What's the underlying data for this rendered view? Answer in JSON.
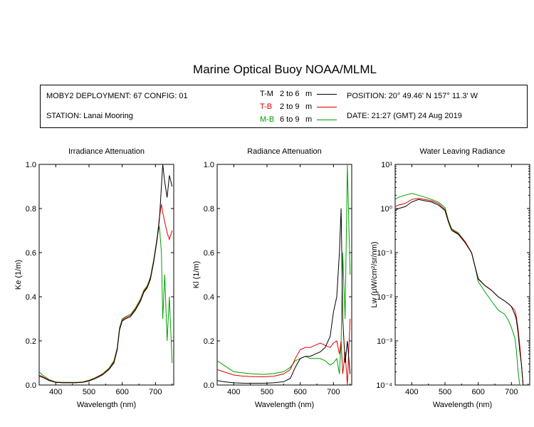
{
  "title": "Marine Optical Buoy NOAA/MLML",
  "info": {
    "deployment": "MOBY2 DEPLOYMENT: 67 CONFIG: 01",
    "station": "STATION: Lanai Mooring",
    "position": "POSITION: 20° 49.46' N   157° 11.3' W",
    "date": "DATE: 21:27 (GMT) 24 Aug 2019",
    "legend": [
      {
        "code": "T-M",
        "range": "2 to 6",
        "unit": "m",
        "color": "#000000"
      },
      {
        "code": "T-B",
        "range": "2 to 9",
        "unit": "m",
        "color": "#e00000"
      },
      {
        "code": "M-B",
        "range": "6 to 9",
        "unit": "m",
        "color": "#00a000"
      }
    ]
  },
  "chart_data": [
    {
      "type": "line",
      "title": "Irradiance Attenuation",
      "xlabel": "Wavelength (nm)",
      "ylabel": "Ke  (1/m)",
      "xlim": [
        350,
        755
      ],
      "ylim": [
        0,
        1
      ],
      "xticks": [
        400,
        500,
        600,
        700
      ],
      "yticks": [
        0,
        0.2,
        0.4,
        0.6,
        0.8,
        1
      ],
      "yticklabels": [
        "0.0",
        "0.2",
        "0.4",
        "0.6",
        "0.8",
        "1.0"
      ],
      "series": [
        {
          "name": "T-M",
          "color": "#000000",
          "x": [
            350,
            360,
            380,
            400,
            420,
            440,
            460,
            480,
            500,
            520,
            540,
            560,
            575,
            585,
            592,
            600,
            610,
            625,
            640,
            655,
            665,
            675,
            685,
            695,
            705,
            712,
            718,
            722,
            728,
            735,
            742,
            750
          ],
          "y": [
            0.04,
            0.035,
            0.02,
            0.012,
            0.01,
            0.01,
            0.01,
            0.012,
            0.018,
            0.03,
            0.045,
            0.07,
            0.1,
            0.16,
            0.25,
            0.29,
            0.3,
            0.31,
            0.34,
            0.38,
            0.42,
            0.44,
            0.48,
            0.56,
            0.66,
            0.75,
            0.9,
            1.0,
            0.92,
            0.85,
            0.95,
            0.9
          ]
        },
        {
          "name": "T-B",
          "color": "#e00000",
          "x": [
            350,
            360,
            380,
            400,
            420,
            440,
            460,
            480,
            500,
            520,
            540,
            560,
            575,
            585,
            592,
            600,
            610,
            625,
            640,
            655,
            665,
            675,
            685,
            695,
            705,
            712,
            718,
            722,
            728,
            735,
            742,
            750
          ],
          "y": [
            0.045,
            0.038,
            0.022,
            0.013,
            0.011,
            0.011,
            0.011,
            0.013,
            0.02,
            0.032,
            0.048,
            0.073,
            0.105,
            0.165,
            0.255,
            0.295,
            0.305,
            0.315,
            0.345,
            0.385,
            0.425,
            0.445,
            0.485,
            0.565,
            0.665,
            0.76,
            0.82,
            0.78,
            0.74,
            0.69,
            0.66,
            0.7
          ]
        },
        {
          "name": "M-B",
          "color": "#00a000",
          "x": [
            350,
            360,
            380,
            400,
            420,
            440,
            460,
            480,
            500,
            520,
            540,
            560,
            575,
            585,
            592,
            600,
            610,
            625,
            640,
            655,
            665,
            675,
            685,
            695,
            705,
            712,
            718,
            722,
            728,
            735,
            742,
            750
          ],
          "y": [
            0.06,
            0.045,
            0.025,
            0.014,
            0.012,
            0.012,
            0.012,
            0.014,
            0.022,
            0.034,
            0.05,
            0.076,
            0.11,
            0.17,
            0.26,
            0.3,
            0.31,
            0.32,
            0.35,
            0.39,
            0.43,
            0.45,
            0.49,
            0.57,
            0.67,
            0.72,
            0.6,
            0.3,
            0.5,
            0.2,
            0.4,
            0.1
          ]
        }
      ]
    },
    {
      "type": "line",
      "title": "Radiance Attenuation",
      "xlabel": "Wavelength (nm)",
      "ylabel": "Kl  (1/m)",
      "xlim": [
        350,
        755
      ],
      "ylim": [
        0,
        1
      ],
      "xticks": [
        400,
        500,
        600,
        700
      ],
      "yticks": [
        0,
        0.2,
        0.4,
        0.6,
        0.8,
        1
      ],
      "yticklabels": [
        "0.0",
        "0.2",
        "0.4",
        "0.6",
        "0.8",
        "1.0"
      ],
      "series": [
        {
          "name": "T-M",
          "color": "#000000",
          "x": [
            350,
            370,
            400,
            430,
            460,
            490,
            520,
            550,
            570,
            585,
            600,
            615,
            630,
            645,
            660,
            675,
            690,
            700,
            710,
            718,
            723,
            728,
            735,
            742,
            750
          ],
          "y": [
            0.02,
            0.015,
            0.01,
            0.008,
            0.008,
            0.008,
            0.01,
            0.015,
            0.03,
            0.08,
            0.12,
            0.13,
            0.13,
            0.14,
            0.15,
            0.17,
            0.22,
            0.33,
            0.4,
            0.6,
            0.8,
            0.3,
            0.1,
            0.2,
            0.05
          ]
        },
        {
          "name": "T-B",
          "color": "#e00000",
          "x": [
            350,
            370,
            400,
            430,
            460,
            490,
            520,
            550,
            570,
            585,
            600,
            615,
            630,
            645,
            660,
            675,
            690,
            700,
            710,
            718,
            723,
            728,
            735,
            742,
            750
          ],
          "y": [
            0.07,
            0.06,
            0.045,
            0.04,
            0.038,
            0.037,
            0.04,
            0.05,
            0.07,
            0.12,
            0.16,
            0.17,
            0.17,
            0.18,
            0.19,
            0.18,
            0.17,
            0.19,
            0.2,
            0.14,
            0.2,
            0.05,
            0.15,
            0.0,
            0.3
          ]
        },
        {
          "name": "M-B",
          "color": "#00a000",
          "x": [
            350,
            370,
            400,
            430,
            460,
            490,
            520,
            550,
            570,
            585,
            600,
            615,
            630,
            645,
            660,
            675,
            690,
            700,
            710,
            718,
            723,
            728,
            735,
            742,
            750
          ],
          "y": [
            0.11,
            0.09,
            0.06,
            0.055,
            0.05,
            0.048,
            0.052,
            0.06,
            0.08,
            0.11,
            0.12,
            0.13,
            0.12,
            0.12,
            0.12,
            0.11,
            0.09,
            0.1,
            0.12,
            0.05,
            0.2,
            0.6,
            0.3,
            1.0,
            0.5
          ]
        }
      ]
    },
    {
      "type": "line",
      "title": "Water Leaving Radiance",
      "xlabel": "Wavelength (nm)",
      "ylabel": "Lw  (µW/cm²/sr/nm)",
      "scale": "log",
      "xlim": [
        350,
        755
      ],
      "ylim": [
        0.0001,
        10
      ],
      "xticks": [
        400,
        500,
        600,
        700
      ],
      "yticks": [
        0.0001,
        0.001,
        0.01,
        0.1,
        1,
        10
      ],
      "yticklabels": [
        "10⁻⁴",
        "10⁻³",
        "10⁻²",
        "10⁻¹",
        "10⁰",
        "10¹"
      ],
      "series": [
        {
          "name": "T-M",
          "color": "#000000",
          "x": [
            350,
            360,
            380,
            400,
            420,
            440,
            460,
            480,
            500,
            510,
            520,
            540,
            560,
            580,
            590,
            600,
            620,
            640,
            660,
            680,
            690,
            700,
            710,
            715,
            720,
            725,
            730,
            735
          ],
          "y": [
            0.9,
            1.0,
            1.1,
            1.4,
            1.6,
            1.5,
            1.4,
            1.2,
            0.9,
            0.5,
            0.32,
            0.26,
            0.17,
            0.1,
            0.05,
            0.025,
            0.018,
            0.014,
            0.01,
            0.008,
            0.007,
            0.006,
            0.004,
            0.003,
            0.0015,
            0.0006,
            0.0003,
            0.0001
          ]
        },
        {
          "name": "T-B",
          "color": "#e00000",
          "x": [
            350,
            360,
            380,
            400,
            420,
            440,
            460,
            480,
            500,
            510,
            520,
            540,
            560,
            580,
            590,
            600,
            620,
            640,
            660,
            680,
            690,
            700,
            710,
            715,
            720,
            725,
            730,
            735
          ],
          "y": [
            1.1,
            1.2,
            1.3,
            1.6,
            1.7,
            1.6,
            1.5,
            1.3,
            0.95,
            0.52,
            0.33,
            0.27,
            0.18,
            0.1,
            0.05,
            0.026,
            0.018,
            0.014,
            0.01,
            0.008,
            0.007,
            0.006,
            0.005,
            0.0035,
            0.0018,
            0.0008,
            0.0003,
            0.0001
          ]
        },
        {
          "name": "M-B",
          "color": "#00a000",
          "x": [
            350,
            360,
            380,
            400,
            420,
            440,
            460,
            480,
            500,
            510,
            520,
            540,
            560,
            580,
            590,
            600,
            620,
            640,
            660,
            680,
            690,
            700,
            710,
            715,
            720,
            725,
            730,
            735
          ],
          "y": [
            1.6,
            1.8,
            2.0,
            2.2,
            2.0,
            1.8,
            1.6,
            1.4,
            1.05,
            0.55,
            0.35,
            0.28,
            0.18,
            0.1,
            0.05,
            0.022,
            0.013,
            0.008,
            0.005,
            0.004,
            0.003,
            0.002,
            0.0012,
            0.0006,
            0.0002,
            0.0001,
            0.0001,
            0.0001
          ]
        }
      ]
    }
  ]
}
